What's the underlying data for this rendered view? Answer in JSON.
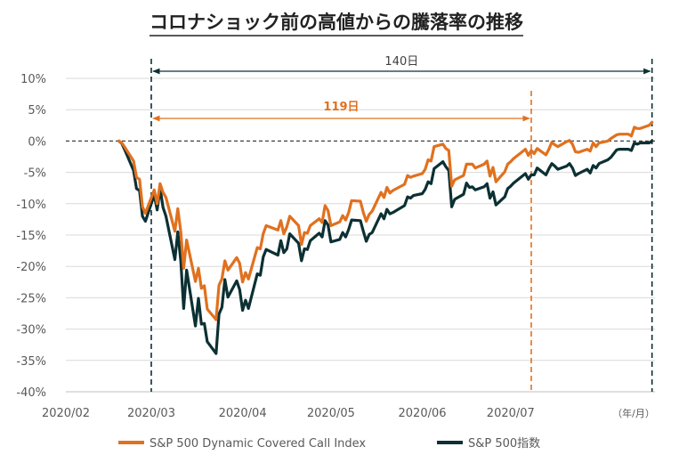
{
  "chart_data": {
    "type": "line",
    "title": "コロナショック前の高値からの騰落率の推移",
    "xlabel": "",
    "ylabel": "",
    "x_unit_label": "（年/月）",
    "x_tick_labels": [
      "2020/02",
      "2020/03",
      "2020/04",
      "2020/05",
      "2020/06",
      "2020/07"
    ],
    "y_tick_labels": [
      "10%",
      "5%",
      "0%",
      "-5%",
      "-10%",
      "-15%",
      "-20%",
      "-25%",
      "-30%",
      "-35%",
      "-40%"
    ],
    "ylim": [
      -40,
      10
    ],
    "grid": true,
    "legend_position": "bottom",
    "colors": {
      "covered_call": "#e0711f",
      "sp500": "#0c3033",
      "grid": "#d9d9d9",
      "zero_line": "#404040"
    },
    "dates": [
      "2020-02-19",
      "2020-02-20",
      "2020-02-21",
      "2020-02-24",
      "2020-02-25",
      "2020-02-26",
      "2020-02-27",
      "2020-02-28",
      "2020-03-02",
      "2020-03-03",
      "2020-03-04",
      "2020-03-05",
      "2020-03-06",
      "2020-03-09",
      "2020-03-10",
      "2020-03-11",
      "2020-03-12",
      "2020-03-13",
      "2020-03-16",
      "2020-03-17",
      "2020-03-18",
      "2020-03-19",
      "2020-03-20",
      "2020-03-23",
      "2020-03-24",
      "2020-03-25",
      "2020-03-26",
      "2020-03-27",
      "2020-03-30",
      "2020-03-31",
      "2020-04-01",
      "2020-04-02",
      "2020-04-03",
      "2020-04-06",
      "2020-04-07",
      "2020-04-08",
      "2020-04-09",
      "2020-04-13",
      "2020-04-14",
      "2020-04-15",
      "2020-04-16",
      "2020-04-17",
      "2020-04-20",
      "2020-04-21",
      "2020-04-22",
      "2020-04-23",
      "2020-04-24",
      "2020-04-27",
      "2020-04-28",
      "2020-04-29",
      "2020-04-30",
      "2020-05-01",
      "2020-05-04",
      "2020-05-05",
      "2020-05-06",
      "2020-05-07",
      "2020-05-08",
      "2020-05-11",
      "2020-05-12",
      "2020-05-13",
      "2020-05-14",
      "2020-05-15",
      "2020-05-18",
      "2020-05-19",
      "2020-05-20",
      "2020-05-21",
      "2020-05-22",
      "2020-05-26",
      "2020-05-27",
      "2020-05-28",
      "2020-05-29",
      "2020-06-01",
      "2020-06-02",
      "2020-06-03",
      "2020-06-04",
      "2020-06-05",
      "2020-06-08",
      "2020-06-09",
      "2020-06-10",
      "2020-06-11",
      "2020-06-12",
      "2020-06-15",
      "2020-06-16",
      "2020-06-17",
      "2020-06-18",
      "2020-06-19",
      "2020-06-22",
      "2020-06-23",
      "2020-06-24",
      "2020-06-25",
      "2020-06-26",
      "2020-06-29",
      "2020-06-30",
      "2020-07-01",
      "2020-07-02",
      "2020-07-06",
      "2020-07-07",
      "2020-07-08",
      "2020-07-09",
      "2020-07-10",
      "2020-07-13",
      "2020-07-14",
      "2020-07-15",
      "2020-07-16",
      "2020-07-17",
      "2020-07-20",
      "2020-07-21",
      "2020-07-22",
      "2020-07-23",
      "2020-07-24",
      "2020-07-27",
      "2020-07-28",
      "2020-07-29",
      "2020-07-30",
      "2020-07-31",
      "2020-08-03",
      "2020-08-04",
      "2020-08-05",
      "2020-08-06",
      "2020-08-07",
      "2020-08-10",
      "2020-08-11",
      "2020-08-12",
      "2020-08-13",
      "2020-08-14",
      "2020-08-17",
      "2020-08-18"
    ],
    "series": [
      {
        "name": "S&P 500 Dynamic Covered Call Index",
        "values": [
          0.0,
          -0.3,
          -1.0,
          -3.2,
          -5.8,
          -6.1,
          -10.5,
          -11.5,
          -7.8,
          -10.0,
          -6.8,
          -8.2,
          -9.0,
          -14.4,
          -10.8,
          -14.4,
          -20.3,
          -15.8,
          -22.4,
          -20.3,
          -23.5,
          -23.1,
          -26.8,
          -28.5,
          -23.0,
          -22.0,
          -19.1,
          -20.6,
          -18.6,
          -19.5,
          -22.5,
          -21.0,
          -22.0,
          -17.0,
          -17.2,
          -14.8,
          -13.5,
          -14.2,
          -12.7,
          -14.8,
          -13.7,
          -12.0,
          -13.5,
          -16.5,
          -14.6,
          -14.7,
          -13.5,
          -12.4,
          -13.0,
          -10.3,
          -11.1,
          -13.5,
          -12.9,
          -11.9,
          -12.6,
          -11.4,
          -9.5,
          -9.6,
          -11.4,
          -12.8,
          -11.7,
          -11.2,
          -8.2,
          -9.0,
          -7.4,
          -8.3,
          -7.9,
          -6.9,
          -5.5,
          -5.8,
          -5.6,
          -5.2,
          -4.5,
          -3.0,
          -3.2,
          -0.9,
          -0.5,
          -1.2,
          -1.5,
          -7.2,
          -6.2,
          -5.5,
          -3.7,
          -3.7,
          -3.7,
          -4.3,
          -3.7,
          -3.2,
          -5.6,
          -4.2,
          -6.5,
          -4.9,
          -3.7,
          -3.3,
          -2.8,
          -1.3,
          -2.3,
          -1.5,
          -2.0,
          -1.2,
          -2.2,
          -1.3,
          -0.2,
          -0.6,
          -0.9,
          -0.1,
          0.1,
          -0.5,
          -1.7,
          -1.8,
          -1.3,
          -1.6,
          -0.3,
          -0.9,
          -0.3,
          0.0,
          0.4,
          0.7,
          1.0,
          1.1,
          1.1,
          0.8,
          2.2,
          2.0,
          2.0,
          2.5,
          3.0
        ]
      },
      {
        "name": "S&P 500指数",
        "values": [
          0.0,
          -0.4,
          -1.4,
          -4.7,
          -7.6,
          -7.9,
          -12.0,
          -12.8,
          -8.6,
          -11.0,
          -7.5,
          -10.6,
          -12.0,
          -18.9,
          -14.5,
          -19.0,
          -26.7,
          -20.6,
          -29.5,
          -25.1,
          -29.2,
          -29.1,
          -32.0,
          -33.9,
          -27.6,
          -26.5,
          -22.1,
          -24.9,
          -22.3,
          -23.7,
          -27.0,
          -25.4,
          -26.7,
          -21.2,
          -21.4,
          -18.5,
          -17.3,
          -18.2,
          -15.9,
          -17.8,
          -17.2,
          -14.8,
          -16.3,
          -19.1,
          -17.2,
          -17.3,
          -15.9,
          -14.7,
          -15.3,
          -12.7,
          -13.4,
          -16.1,
          -15.7,
          -14.6,
          -15.3,
          -14.1,
          -12.6,
          -12.7,
          -14.4,
          -16.0,
          -14.9,
          -14.6,
          -11.6,
          -12.4,
          -10.9,
          -11.6,
          -11.4,
          -10.3,
          -8.9,
          -9.1,
          -8.7,
          -8.4,
          -7.7,
          -6.5,
          -6.8,
          -4.4,
          -3.3,
          -4.1,
          -4.7,
          -10.5,
          -9.3,
          -8.5,
          -6.7,
          -7.4,
          -7.3,
          -7.8,
          -7.3,
          -6.8,
          -9.1,
          -8.1,
          -10.2,
          -8.9,
          -7.6,
          -7.2,
          -6.7,
          -5.2,
          -6.1,
          -5.4,
          -5.4,
          -4.3,
          -5.4,
          -4.4,
          -3.6,
          -4.0,
          -4.5,
          -4.0,
          -3.6,
          -4.3,
          -5.5,
          -5.2,
          -4.5,
          -5.1,
          -3.9,
          -4.3,
          -3.6,
          -3.0,
          -2.6,
          -2.0,
          -1.4,
          -1.3,
          -1.3,
          -1.5,
          -0.3,
          -0.5,
          -0.3,
          -0.3,
          0.0
        ]
      }
    ],
    "month_tick_dates": [
      "2020-02-01",
      "2020-03-01",
      "2020-04-01",
      "2020-05-01",
      "2020-06-01",
      "2020-07-01"
    ],
    "annotations": [
      {
        "label": "140日",
        "from": "2020-03-01",
        "to": "2020-08-18",
        "color": "#0c3033"
      },
      {
        "label": "119日",
        "from": "2020-03-01",
        "to": "2020-07-08",
        "color": "#e0711f"
      }
    ]
  }
}
